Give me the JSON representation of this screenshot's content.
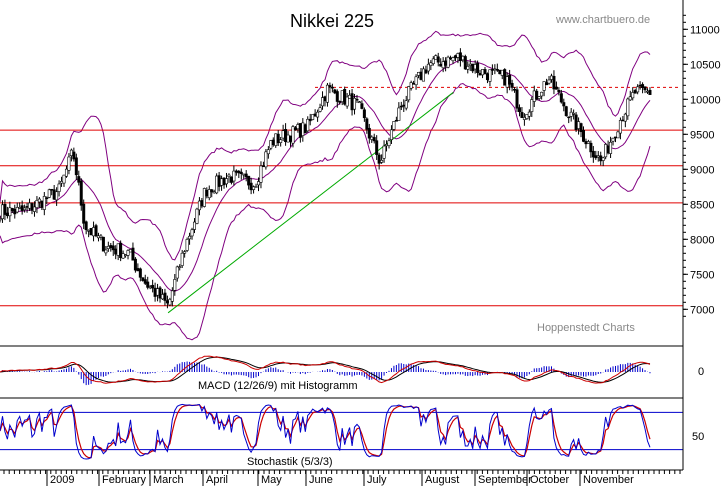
{
  "chart_data": [
    {
      "type": "candlestick",
      "title": "Nikkei 225",
      "source": "www.chartbuero.de",
      "watermark": "Hoppenstedt Charts",
      "ylim": [
        6800,
        11300
      ],
      "yticks": [
        7000,
        7500,
        8000,
        8500,
        9000,
        9500,
        10000,
        10500,
        11000
      ],
      "x_months": [
        "2009",
        "February",
        "March",
        "April",
        "May",
        "June",
        "July",
        "August",
        "September",
        "October",
        "November"
      ],
      "close_approx": [
        {
          "date": "2008-12",
          "value": 8400
        },
        {
          "date": "2009-01-05",
          "value": 8700
        },
        {
          "date": "2009-01-13",
          "value": 9250
        },
        {
          "date": "2009-01-20",
          "value": 8200
        },
        {
          "date": "2009-02-01",
          "value": 7900
        },
        {
          "date": "2009-02-15",
          "value": 7800
        },
        {
          "date": "2009-02-24",
          "value": 7400
        },
        {
          "date": "2009-03-10",
          "value": 7050
        },
        {
          "date": "2009-03-20",
          "value": 7900
        },
        {
          "date": "2009-04-01",
          "value": 8700
        },
        {
          "date": "2009-04-15",
          "value": 8900
        },
        {
          "date": "2009-04-30",
          "value": 8800
        },
        {
          "date": "2009-05-10",
          "value": 9400
        },
        {
          "date": "2009-05-31",
          "value": 9600
        },
        {
          "date": "2009-06-12",
          "value": 10150
        },
        {
          "date": "2009-06-30",
          "value": 9900
        },
        {
          "date": "2009-07-13",
          "value": 9100
        },
        {
          "date": "2009-07-25",
          "value": 9900
        },
        {
          "date": "2009-08-10",
          "value": 10500
        },
        {
          "date": "2009-08-28",
          "value": 10600
        },
        {
          "date": "2009-09-10",
          "value": 10400
        },
        {
          "date": "2009-09-25",
          "value": 10300
        },
        {
          "date": "2009-10-05",
          "value": 9800
        },
        {
          "date": "2009-10-20",
          "value": 10300
        },
        {
          "date": "2009-11-01",
          "value": 9800
        },
        {
          "date": "2009-11-20",
          "value": 9100
        },
        {
          "date": "2009-12-01",
          "value": 9700
        },
        {
          "date": "2009-12-10",
          "value": 10100
        }
      ],
      "horizontal_lines": [
        7050,
        8520,
        9050,
        9560
      ],
      "resistance_dashed": 10170,
      "trendline": {
        "from": {
          "date": "2009-03-10",
          "value": 6950
        },
        "to": {
          "date": "2009-08-25",
          "value": 10100
        }
      },
      "line_color": "#e00000",
      "trend_color": "#00aa00",
      "bollinger_color": "#800080"
    },
    {
      "type": "line",
      "label": "MACD (12/26/9) mit Histogramm",
      "yticks": [
        0
      ],
      "series": [
        {
          "color": "#cc0000",
          "values": []
        },
        {
          "color": "#000000",
          "values": []
        }
      ],
      "histogram_color": "#0000cc"
    },
    {
      "type": "line",
      "label": "Stochastik (5/3/3)",
      "yticks": [
        50
      ],
      "bands": [
        20,
        80
      ],
      "series": [
        {
          "color": "#0000cc",
          "values": []
        },
        {
          "color": "#cc0000",
          "values": []
        }
      ]
    }
  ]
}
